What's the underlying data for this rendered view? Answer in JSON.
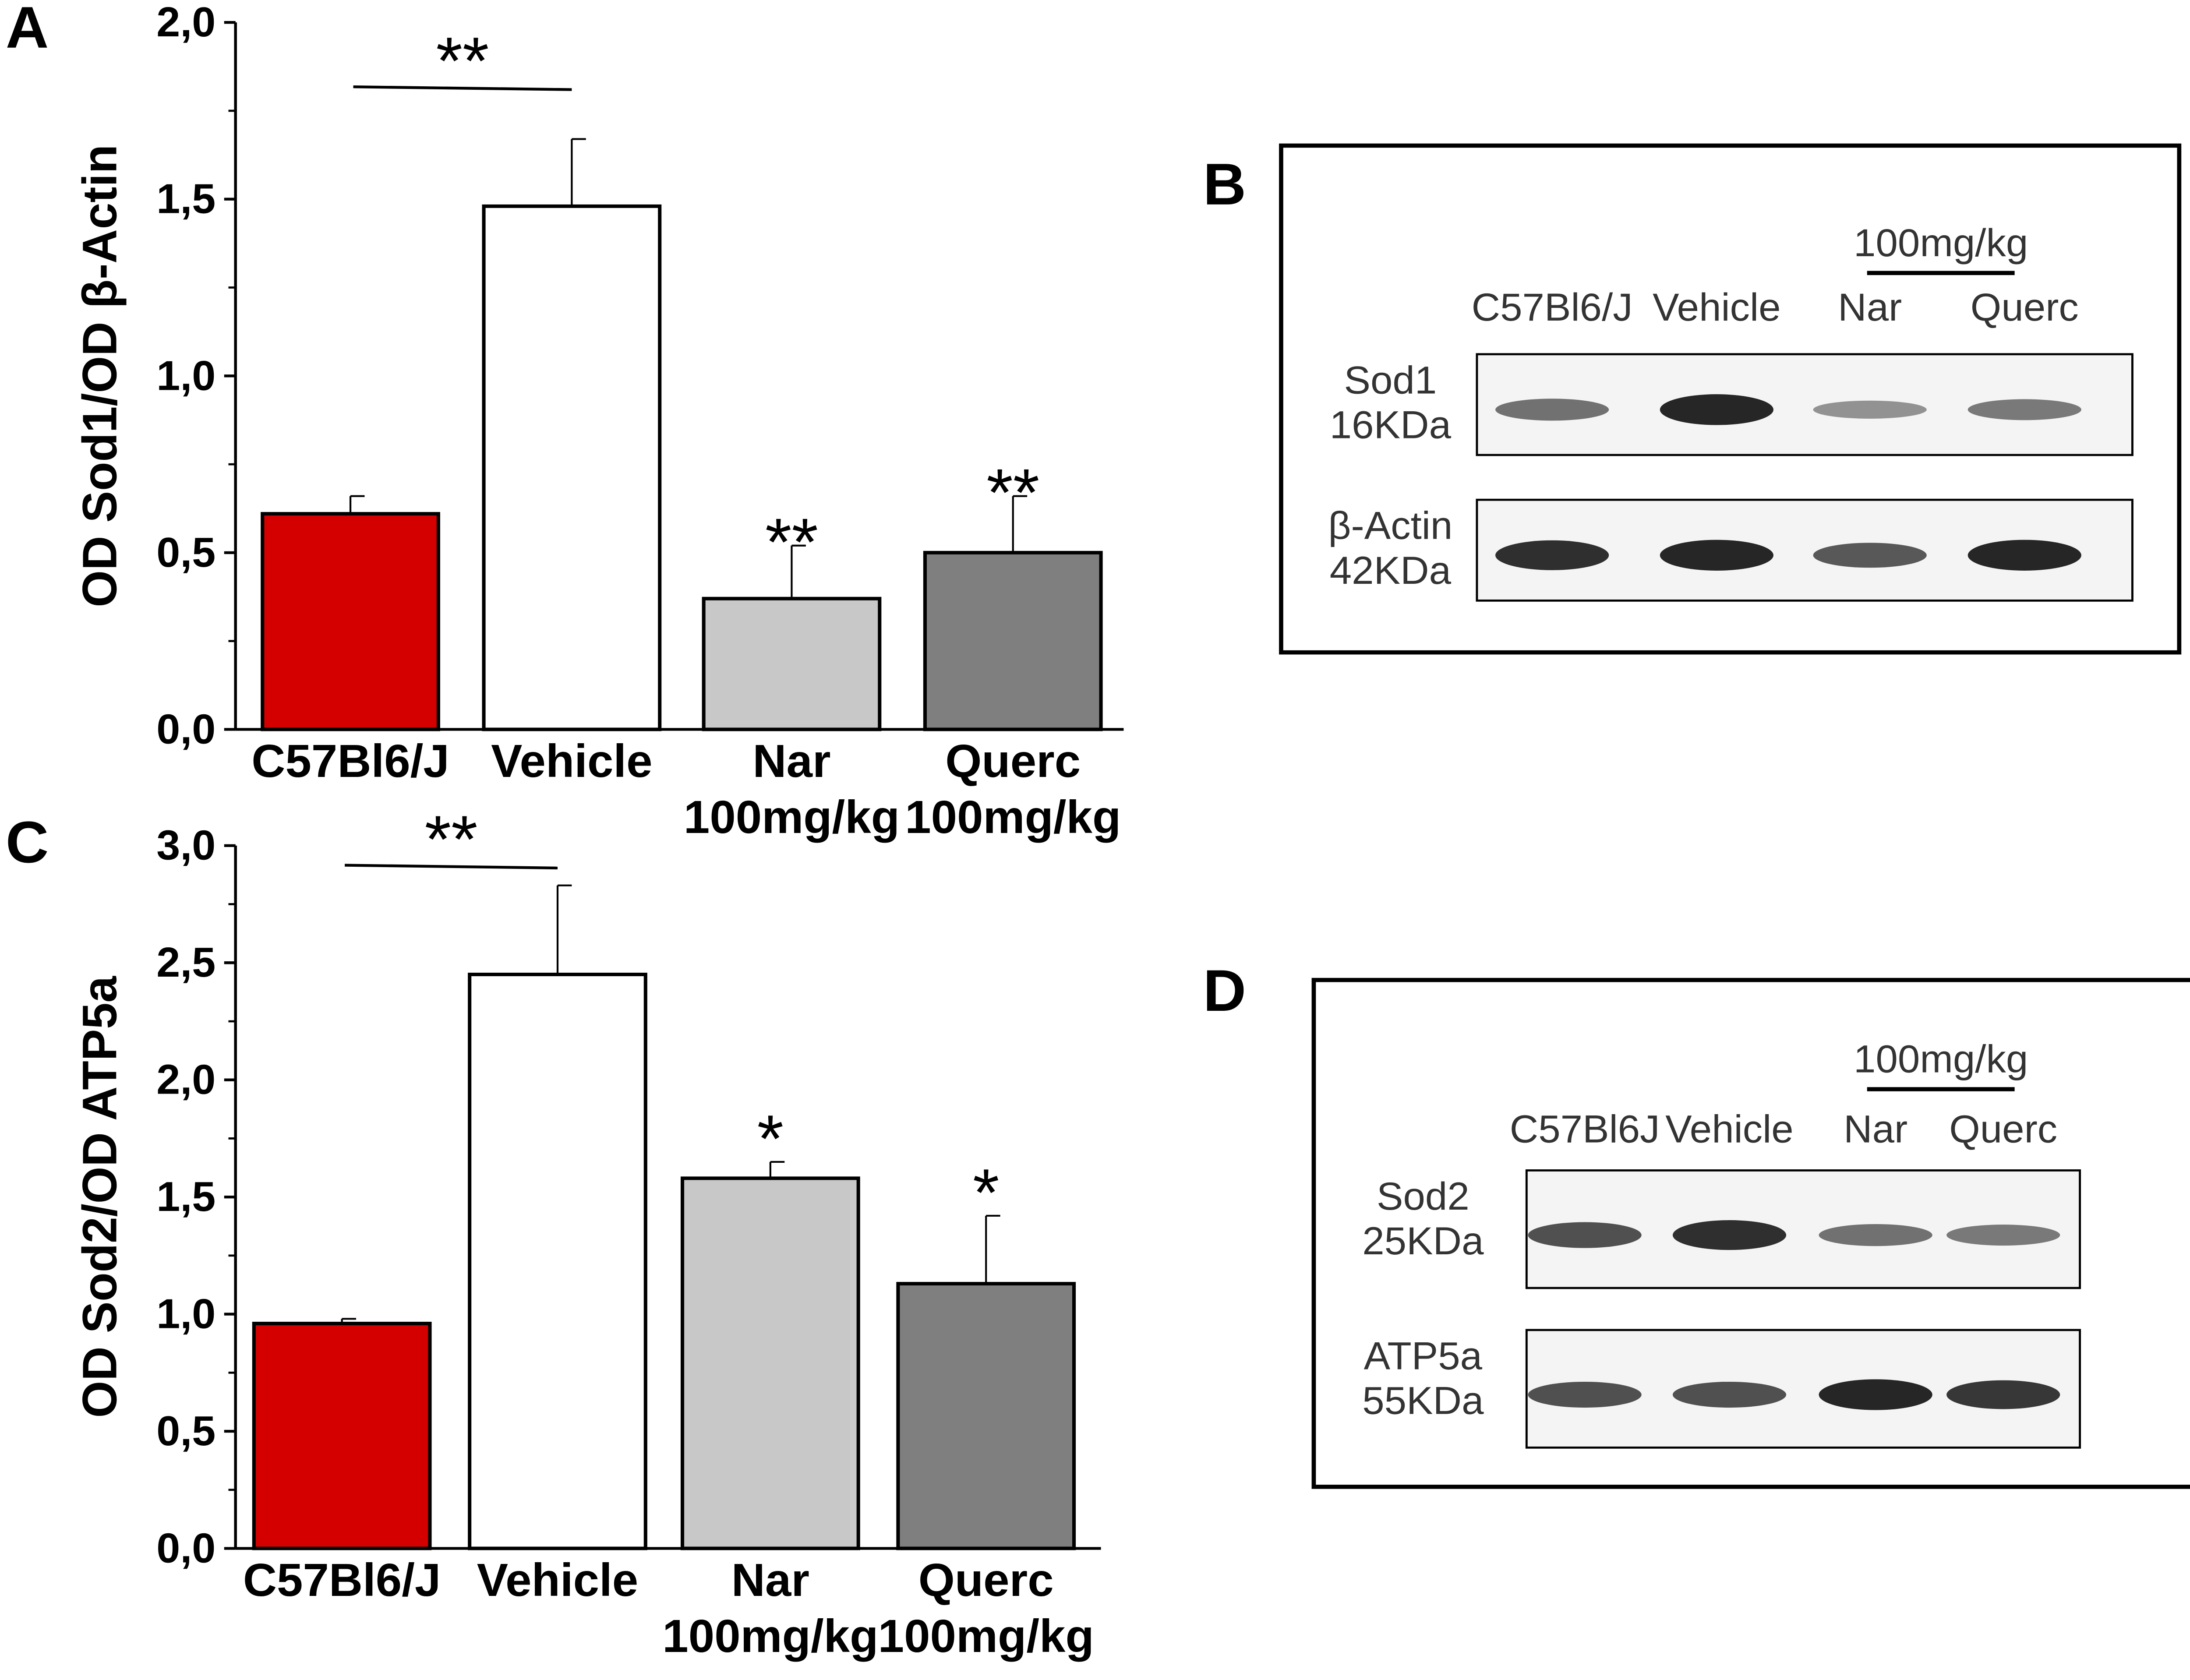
{
  "panels": {
    "a": "A",
    "b": "B",
    "c": "C",
    "d": "D"
  },
  "chart_data": [
    {
      "type": "bar",
      "panel": "A",
      "ylabel": "OD Sod1/OD β-Actin",
      "ylim": [
        0,
        2.0
      ],
      "yticks": [
        "0,0",
        "0,5",
        "1,0",
        "1,5",
        "2,0"
      ],
      "categories": [
        [
          "C57Bl6/J"
        ],
        [
          "Vehicle"
        ],
        [
          "Nar",
          "100mg/kg"
        ],
        [
          "Querc",
          "100mg/kg"
        ]
      ],
      "values": [
        0.61,
        1.48,
        0.37,
        0.5
      ],
      "errors": [
        0.05,
        0.19,
        0.15,
        0.16
      ],
      "colors": [
        "#d40000",
        "#ffffff",
        "#c8c8c8",
        "#7f7f7f"
      ],
      "significance": [
        "",
        "",
        "**",
        "**"
      ],
      "bracket": {
        "from": 0,
        "to": 1,
        "label": "**"
      }
    },
    {
      "type": "bar",
      "panel": "C",
      "ylabel": "OD Sod2/OD ATP5a",
      "ylim": [
        0,
        3.0
      ],
      "yticks": [
        "0,0",
        "0,5",
        "1,0",
        "1,5",
        "2,0",
        "2,5",
        "3,0"
      ],
      "categories": [
        [
          "C57Bl6/J"
        ],
        [
          "Vehicle"
        ],
        [
          "Nar",
          "100mg/kg"
        ],
        [
          "Querc",
          "100mg/kg"
        ]
      ],
      "values": [
        0.96,
        2.45,
        1.58,
        1.13
      ],
      "errors": [
        0.02,
        0.38,
        0.07,
        0.29
      ],
      "colors": [
        "#d40000",
        "#ffffff",
        "#c8c8c8",
        "#7f7f7f"
      ],
      "significance": [
        "",
        "",
        "*",
        "*"
      ],
      "bracket": {
        "from": 0,
        "to": 1,
        "label": "**"
      }
    }
  ],
  "blots": [
    {
      "panel": "B",
      "dose": "100mg/kg",
      "lanes": [
        "C57Bl6/J",
        "Vehicle",
        "Nar",
        "Querc"
      ],
      "rows": [
        {
          "name": "Sod1",
          "size": "16KDa",
          "intensity": [
            0.55,
            1.0,
            0.35,
            0.5
          ]
        },
        {
          "name": "β-Actin",
          "size": "42KDa",
          "intensity": [
            0.95,
            1.0,
            0.7,
            1.0
          ]
        }
      ]
    },
    {
      "panel": "D",
      "dose": "100mg/kg",
      "lanes": [
        "C57Bl6J",
        "Vehicle",
        "Nar",
        "Querc"
      ],
      "rows": [
        {
          "name": "Sod2",
          "size": "25KDa",
          "intensity": [
            0.75,
            0.95,
            0.55,
            0.5
          ]
        },
        {
          "name": "ATP5a",
          "size": "55KDa",
          "intensity": [
            0.75,
            0.75,
            1.0,
            0.9
          ]
        }
      ]
    }
  ]
}
